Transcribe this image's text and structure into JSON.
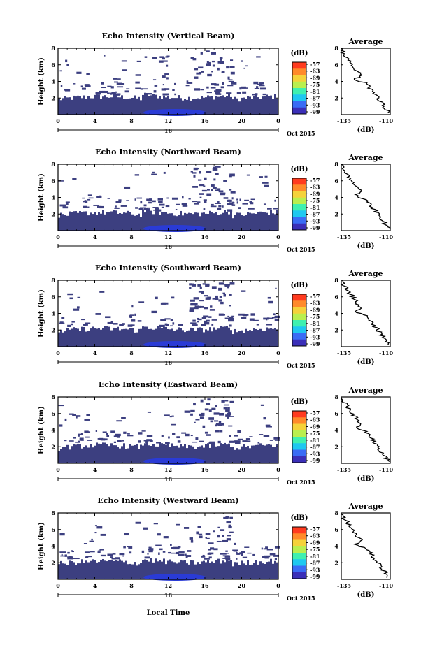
{
  "figure": {
    "xlabel": "Local Time",
    "colorbar_unit": "(dB)",
    "avg_unit": "(dB)",
    "date_label": "Oct 2015",
    "day_label": "16"
  },
  "chart_data": [
    {
      "type": "heatmap",
      "title": "Echo Intensity (Vertical Beam)",
      "ylabel": "Height (km)",
      "xlim": [
        0,
        24
      ],
      "ylim": [
        0,
        8
      ],
      "x_ticks": [
        "0",
        "4",
        "8",
        "12",
        "16",
        "20",
        "0"
      ],
      "y_ticks": [
        "2",
        "4",
        "6",
        "8"
      ],
      "colorbar": {
        "ticks": [
          "-57",
          "-63",
          "-69",
          "-75",
          "-81",
          "-87",
          "-93",
          "-99"
        ],
        "range": [
          -99,
          -57
        ]
      },
      "average": {
        "title": "Average",
        "xlim": [
          -135,
          -110
        ],
        "x_ticks": [
          "-135",
          "-110"
        ],
        "y_ticks": [
          "2",
          "4",
          "6",
          "8"
        ],
        "xlabel": "(dB)"
      }
    },
    {
      "type": "heatmap",
      "title": "Echo Intensity (Northward Beam)",
      "ylabel": "Height (km)",
      "xlim": [
        0,
        24
      ],
      "ylim": [
        0,
        8
      ],
      "x_ticks": [
        "0",
        "4",
        "8",
        "12",
        "16",
        "20",
        "0"
      ],
      "y_ticks": [
        "2",
        "4",
        "6",
        "8"
      ],
      "colorbar": {
        "ticks": [
          "-57",
          "-63",
          "-69",
          "-75",
          "-81",
          "-87",
          "-93",
          "-99"
        ],
        "range": [
          -99,
          -57
        ]
      },
      "average": {
        "title": "Average",
        "xlim": [
          -135,
          -110
        ],
        "x_ticks": [
          "-135",
          "-110"
        ],
        "y_ticks": [
          "2",
          "4",
          "6",
          "8"
        ],
        "xlabel": "(dB)"
      }
    },
    {
      "type": "heatmap",
      "title": "Echo Intensity (Southward Beam)",
      "ylabel": "Height (km)",
      "xlim": [
        0,
        24
      ],
      "ylim": [
        0,
        8
      ],
      "x_ticks": [
        "0",
        "4",
        "8",
        "12",
        "16",
        "20",
        "0"
      ],
      "y_ticks": [
        "2",
        "4",
        "6",
        "8"
      ],
      "colorbar": {
        "ticks": [
          "-57",
          "-63",
          "-69",
          "-75",
          "-81",
          "-87",
          "-93",
          "-99"
        ],
        "range": [
          -99,
          -57
        ]
      },
      "average": {
        "title": "Average",
        "xlim": [
          -135,
          -110
        ],
        "x_ticks": [
          "-135",
          "-110"
        ],
        "y_ticks": [
          "2",
          "4",
          "6",
          "8"
        ],
        "xlabel": "(dB)"
      }
    },
    {
      "type": "heatmap",
      "title": "Echo Intensity (Eastward Beam)",
      "ylabel": "Height (km)",
      "xlim": [
        0,
        24
      ],
      "ylim": [
        0,
        8
      ],
      "x_ticks": [
        "0",
        "4",
        "8",
        "12",
        "16",
        "20",
        "0"
      ],
      "y_ticks": [
        "2",
        "4",
        "6",
        "8"
      ],
      "colorbar": {
        "ticks": [
          "-57",
          "-63",
          "-69",
          "-75",
          "-81",
          "-87",
          "-93",
          "-99"
        ],
        "range": [
          -99,
          -57
        ]
      },
      "average": {
        "title": "Average",
        "xlim": [
          -135,
          -110
        ],
        "x_ticks": [
          "-135",
          "-110"
        ],
        "y_ticks": [
          "2",
          "4",
          "6",
          "8"
        ],
        "xlabel": "(dB)"
      }
    },
    {
      "type": "heatmap",
      "title": "Echo Intensity (Westward Beam)",
      "ylabel": "Height (km)",
      "xlim": [
        0,
        24
      ],
      "ylim": [
        0,
        8
      ],
      "x_ticks": [
        "0",
        "4",
        "8",
        "12",
        "16",
        "20",
        "0"
      ],
      "y_ticks": [
        "2",
        "4",
        "6",
        "8"
      ],
      "colorbar": {
        "ticks": [
          "-57",
          "-63",
          "-69",
          "-75",
          "-81",
          "-87",
          "-93",
          "-99"
        ],
        "range": [
          -99,
          -57
        ]
      },
      "average": {
        "title": "Average",
        "xlim": [
          -135,
          -110
        ],
        "x_ticks": [
          "-135",
          "-110"
        ],
        "y_ticks": [
          "2",
          "4",
          "6",
          "8"
        ],
        "xlabel": "(dB)"
      }
    }
  ],
  "colors": {
    "colorbar": [
      "#ff3b1f",
      "#ff8a2a",
      "#f5d23a",
      "#b9ef4f",
      "#3ff0b0",
      "#1fc8f0",
      "#3a6cf5",
      "#3b2fb8"
    ],
    "echo_fill": "#3c3f80",
    "echo_core": "#2a3bd6"
  }
}
